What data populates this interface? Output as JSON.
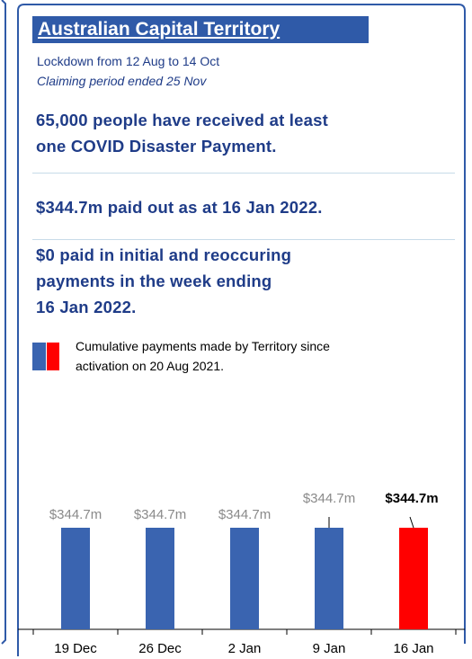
{
  "header": {
    "title": "Australian Capital Territory",
    "lockdown": "Lockdown from 12 Aug to 14 Oct",
    "claiming": "Claiming period ended 25 Nov"
  },
  "headlines": [
    [
      "65,000 people have received at least",
      "one COVID Disaster Payment."
    ],
    [
      "$344.7m paid out as at 16 Jan 2022."
    ],
    [
      "$0 paid in initial and reoccuring",
      "payments in the week ending",
      "16 Jan 2022."
    ]
  ],
  "legend": [
    "Cumulative payments made by Territory since",
    "activation on 20 Aug 2021."
  ],
  "chart_data": {
    "type": "bar",
    "categories": [
      "19 Dec",
      "26 Dec",
      "2 Jan",
      "9 Jan",
      "16 Jan"
    ],
    "values": [
      344.7,
      344.7,
      344.7,
      344.7,
      344.7
    ],
    "value_labels": [
      "$344.7m",
      "$344.7m",
      "$344.7m",
      "$344.7m",
      "$344.7m"
    ],
    "colors": [
      "#3a64b0",
      "#3a64b0",
      "#3a64b0",
      "#3a64b0",
      "#ff0000"
    ]
  }
}
